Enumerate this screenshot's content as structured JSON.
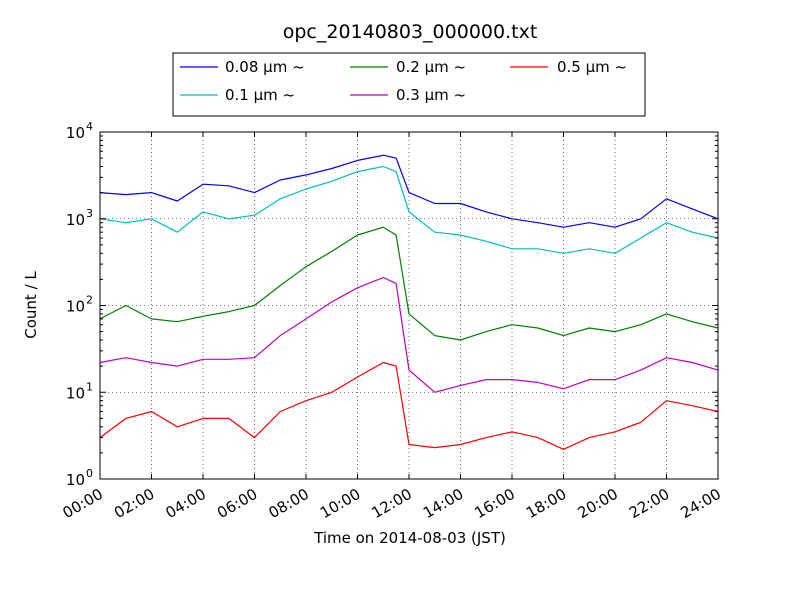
{
  "chart_data": {
    "type": "line",
    "title": "opc_20140803_000000.txt",
    "xlabel": "Time on 2014-08-03 (JST)",
    "ylabel": "Count / L",
    "y_scale": "log",
    "ylim": [
      1,
      10000
    ],
    "y_ticks": [
      {
        "base": "10",
        "exp": "0"
      },
      {
        "base": "10",
        "exp": "1"
      },
      {
        "base": "10",
        "exp": "2"
      },
      {
        "base": "10",
        "exp": "3"
      },
      {
        "base": "10",
        "exp": "4"
      }
    ],
    "xlim": [
      "00:00",
      "24:00"
    ],
    "x_ticks": [
      "00:00",
      "02:00",
      "04:00",
      "06:00",
      "08:00",
      "10:00",
      "12:00",
      "14:00",
      "16:00",
      "18:00",
      "20:00",
      "22:00",
      "24:00"
    ],
    "grid": true,
    "legend_position": "top-center, above plot",
    "x": [
      "00:00",
      "01:00",
      "02:00",
      "03:00",
      "04:00",
      "05:00",
      "06:00",
      "07:00",
      "08:00",
      "09:00",
      "10:00",
      "11:00",
      "11:30",
      "12:00",
      "13:00",
      "14:00",
      "15:00",
      "16:00",
      "17:00",
      "18:00",
      "19:00",
      "20:00",
      "21:00",
      "22:00",
      "23:00",
      "24:00"
    ],
    "series": [
      {
        "name": "0.08 μm ~",
        "color": "#0000ff",
        "values": [
          2000,
          1900,
          2000,
          1600,
          2500,
          2400,
          2000,
          2800,
          3200,
          3800,
          4700,
          5400,
          5000,
          2000,
          1500,
          1500,
          1200,
          1000,
          900,
          800,
          900,
          800,
          1000,
          1700,
          1300,
          1000
        ]
      },
      {
        "name": "0.1 μm ~",
        "color": "#00bfbf",
        "values": [
          1000,
          900,
          1000,
          700,
          1200,
          1000,
          1100,
          1700,
          2200,
          2700,
          3500,
          4000,
          3500,
          1200,
          700,
          650,
          550,
          450,
          450,
          400,
          450,
          400,
          600,
          900,
          700,
          600
        ]
      },
      {
        "name": "0.2 μm ~",
        "color": "#008000",
        "values": [
          70,
          100,
          70,
          65,
          75,
          85,
          100,
          170,
          280,
          420,
          650,
          800,
          650,
          80,
          45,
          40,
          50,
          60,
          55,
          45,
          55,
          50,
          60,
          80,
          65,
          55
        ]
      },
      {
        "name": "0.3 μm ~",
        "color": "#bf00bf",
        "values": [
          22,
          25,
          22,
          20,
          24,
          24,
          25,
          45,
          70,
          110,
          160,
          210,
          180,
          18,
          10,
          12,
          14,
          14,
          13,
          11,
          14,
          14,
          18,
          25,
          22,
          18
        ]
      },
      {
        "name": "0.5 μm ~",
        "color": "#ff0000",
        "values": [
          3,
          5,
          6,
          4,
          5,
          5,
          3,
          6,
          8,
          10,
          15,
          22,
          20,
          2.5,
          2.3,
          2.5,
          3,
          3.5,
          3,
          2.2,
          3,
          3.5,
          4.5,
          8,
          7,
          6
        ]
      }
    ]
  }
}
